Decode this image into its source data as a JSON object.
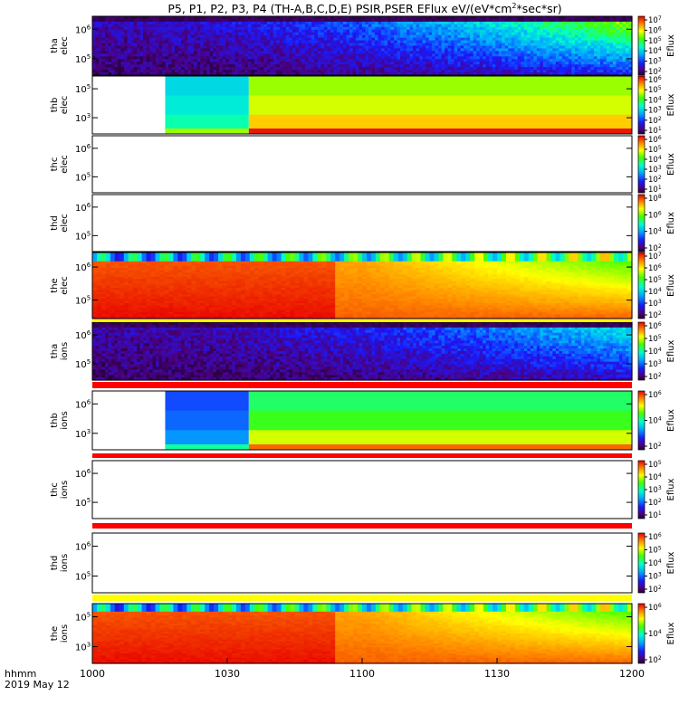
{
  "chart_data": {
    "type": "heatmap",
    "title": "P5, P1, P2, P3, P4 (TH-A,B,C,D,E) PSIR,PSER EFlux eV/(eV*cm²*sec*sr)",
    "title_pre": "P5, P1, P2, P3, P4 (TH-A,B,C,D,E) PSIR,PSER EFlux eV/(eV*cm",
    "title_sup": "2",
    "title_post": "*sec*sr)",
    "x_tick_labels": [
      "1000",
      "1030",
      "1100",
      "1130",
      "1200"
    ],
    "x_range": [
      "10:00",
      "12:00"
    ],
    "time_label": "hhmm",
    "date_label": "2019 May 12",
    "colorbar_label": "Eflux",
    "panels": [
      {
        "name": "tha elec",
        "probe": "tha",
        "species": "elec",
        "y_ticks": [
          {
            "base": "10",
            "exp": "6"
          },
          {
            "base": "10",
            "exp": "5"
          }
        ],
        "cbar_ticks": [
          {
            "base": "10",
            "exp": "7"
          },
          {
            "base": "10",
            "exp": "6"
          },
          {
            "base": "10",
            "exp": "5"
          },
          {
            "base": "10",
            "exp": "4"
          },
          {
            "base": "10",
            "exp": "3"
          },
          {
            "base": "10",
            "exp": "2"
          }
        ],
        "data": {
          "kind": "noise",
          "t_start": 0.0,
          "start_level": 0.05,
          "end_level": 0.35
        }
      },
      {
        "name": "thb elec",
        "probe": "thb",
        "species": "elec",
        "y_ticks": [
          {
            "base": "10",
            "exp": "5"
          },
          {
            "base": "10",
            "exp": "3"
          }
        ],
        "cbar_ticks": [
          {
            "base": "10",
            "exp": "6"
          },
          {
            "base": "10",
            "exp": "5"
          },
          {
            "base": "10",
            "exp": "4"
          },
          {
            "base": "10",
            "exp": "3"
          },
          {
            "base": "10",
            "exp": "2"
          },
          {
            "base": "10",
            "exp": "1"
          }
        ],
        "data": {
          "kind": "blocks",
          "gap_end": 0.135,
          "blocks": [
            {
              "t_start": 0.135,
              "t_end": 0.29,
              "levels": [
                0.42,
                0.45,
                0.5
              ]
            },
            {
              "t_start": 0.29,
              "t_end": 1.0,
              "levels": [
                0.68,
                0.72,
                0.8
              ]
            }
          ]
        }
      },
      {
        "name": "thc elec",
        "probe": "thc",
        "species": "elec",
        "y_ticks": [
          {
            "base": "10",
            "exp": "6"
          },
          {
            "base": "10",
            "exp": "5"
          }
        ],
        "cbar_ticks": [
          {
            "base": "10",
            "exp": "6"
          },
          {
            "base": "10",
            "exp": "5"
          },
          {
            "base": "10",
            "exp": "4"
          },
          {
            "base": "10",
            "exp": "3"
          },
          {
            "base": "10",
            "exp": "2"
          },
          {
            "base": "10",
            "exp": "1"
          }
        ],
        "data": {
          "kind": "empty"
        }
      },
      {
        "name": "thd elec",
        "probe": "thd",
        "species": "elec",
        "y_ticks": [
          {
            "base": "10",
            "exp": "6"
          },
          {
            "base": "10",
            "exp": "5"
          }
        ],
        "cbar_ticks": [
          {
            "base": "10",
            "exp": "8"
          },
          {
            "base": "10",
            "exp": "6"
          },
          {
            "base": "10",
            "exp": "4"
          },
          {
            "base": "10",
            "exp": "2"
          }
        ],
        "data": {
          "kind": "empty"
        }
      },
      {
        "name": "the elec",
        "probe": "the",
        "species": "elec",
        "y_ticks": [
          {
            "base": "10",
            "exp": "6"
          },
          {
            "base": "10",
            "exp": "5"
          }
        ],
        "cbar_ticks": [
          {
            "base": "10",
            "exp": "7"
          },
          {
            "base": "10",
            "exp": "6"
          },
          {
            "base": "10",
            "exp": "5"
          },
          {
            "base": "10",
            "exp": "4"
          },
          {
            "base": "10",
            "exp": "3"
          },
          {
            "base": "10",
            "exp": "2"
          }
        ],
        "data": {
          "kind": "smooth"
        }
      },
      {
        "name": "tha ions",
        "probe": "tha",
        "species": "ions",
        "y_ticks": [
          {
            "base": "10",
            "exp": "6"
          },
          {
            "base": "10",
            "exp": "5"
          }
        ],
        "cbar_ticks": [
          {
            "base": "10",
            "exp": "6"
          },
          {
            "base": "10",
            "exp": "5"
          },
          {
            "base": "10",
            "exp": "4"
          },
          {
            "base": "10",
            "exp": "3"
          },
          {
            "base": "10",
            "exp": "2"
          }
        ],
        "data": {
          "kind": "noise",
          "t_start": 0.0,
          "start_level": 0.04,
          "end_level": 0.22
        }
      },
      {
        "name": "thb ions",
        "probe": "thb",
        "species": "ions",
        "y_ticks": [
          {
            "base": "10",
            "exp": "6"
          },
          {
            "base": "10",
            "exp": "3"
          }
        ],
        "cbar_ticks": [
          {
            "base": "10",
            "exp": "6"
          },
          {
            "base": "10",
            "exp": "4"
          },
          {
            "base": "10",
            "exp": "2"
          }
        ],
        "data": {
          "kind": "blocks",
          "gap_end": 0.135,
          "blocks": [
            {
              "t_start": 0.135,
              "t_end": 0.29,
              "levels": [
                0.25,
                0.28,
                0.33
              ]
            },
            {
              "t_start": 0.29,
              "t_end": 1.0,
              "levels": [
                0.55,
                0.6,
                0.72
              ]
            }
          ]
        }
      },
      {
        "name": "thc ions",
        "probe": "thc",
        "species": "ions",
        "y_ticks": [
          {
            "base": "10",
            "exp": "6"
          },
          {
            "base": "10",
            "exp": "5"
          }
        ],
        "cbar_ticks": [
          {
            "base": "10",
            "exp": "5"
          },
          {
            "base": "10",
            "exp": "4"
          },
          {
            "base": "10",
            "exp": "3"
          },
          {
            "base": "10",
            "exp": "2"
          },
          {
            "base": "10",
            "exp": "1"
          }
        ],
        "data": {
          "kind": "empty"
        }
      },
      {
        "name": "thd ions",
        "probe": "thd",
        "species": "ions",
        "y_ticks": [
          {
            "base": "10",
            "exp": "6"
          },
          {
            "base": "10",
            "exp": "5"
          }
        ],
        "cbar_ticks": [
          {
            "base": "10",
            "exp": "6"
          },
          {
            "base": "10",
            "exp": "5"
          },
          {
            "base": "10",
            "exp": "4"
          },
          {
            "base": "10",
            "exp": "3"
          },
          {
            "base": "10",
            "exp": "2"
          }
        ],
        "data": {
          "kind": "empty"
        }
      },
      {
        "name": "the ions",
        "probe": "the",
        "species": "ions",
        "y_ticks": [
          {
            "base": "10",
            "exp": "5"
          },
          {
            "base": "10",
            "exp": "3"
          }
        ],
        "cbar_ticks": [
          {
            "base": "10",
            "exp": "6"
          },
          {
            "base": "10",
            "exp": "4"
          },
          {
            "base": "10",
            "exp": "2"
          }
        ],
        "data": {
          "kind": "smooth"
        }
      }
    ]
  }
}
